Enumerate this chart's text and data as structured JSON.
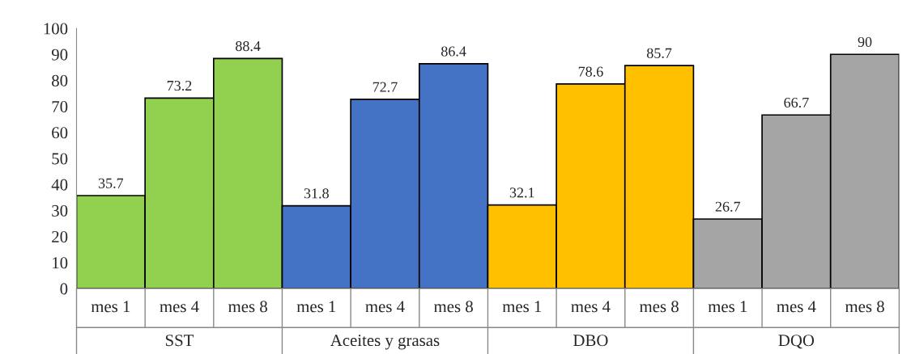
{
  "chart_data": {
    "type": "bar",
    "categories": [
      "mes 1",
      "mes 4",
      "mes 8",
      "mes 1",
      "mes 4",
      "mes 8",
      "mes 1",
      "mes 4",
      "mes 8",
      "mes 1",
      "mes 4",
      "mes 8"
    ],
    "values": [
      35.7,
      73.2,
      88.4,
      31.8,
      72.7,
      86.4,
      32.1,
      78.6,
      85.7,
      26.7,
      66.7,
      90
    ],
    "colors": [
      "#92d050",
      "#92d050",
      "#92d050",
      "#4472c4",
      "#4472c4",
      "#4472c4",
      "#ffc000",
      "#ffc000",
      "#ffc000",
      "#a5a5a5",
      "#a5a5a5",
      "#a5a5a5"
    ],
    "annotations": [
      "SST",
      "Aceites y grasas",
      "DBO",
      "DQO"
    ],
    "ylim": [
      0,
      100
    ],
    "yticks": [
      0,
      10,
      20,
      30,
      40,
      50,
      60,
      70,
      80,
      90,
      100
    ],
    "data_labels": true,
    "grid": false,
    "legend": false
  }
}
